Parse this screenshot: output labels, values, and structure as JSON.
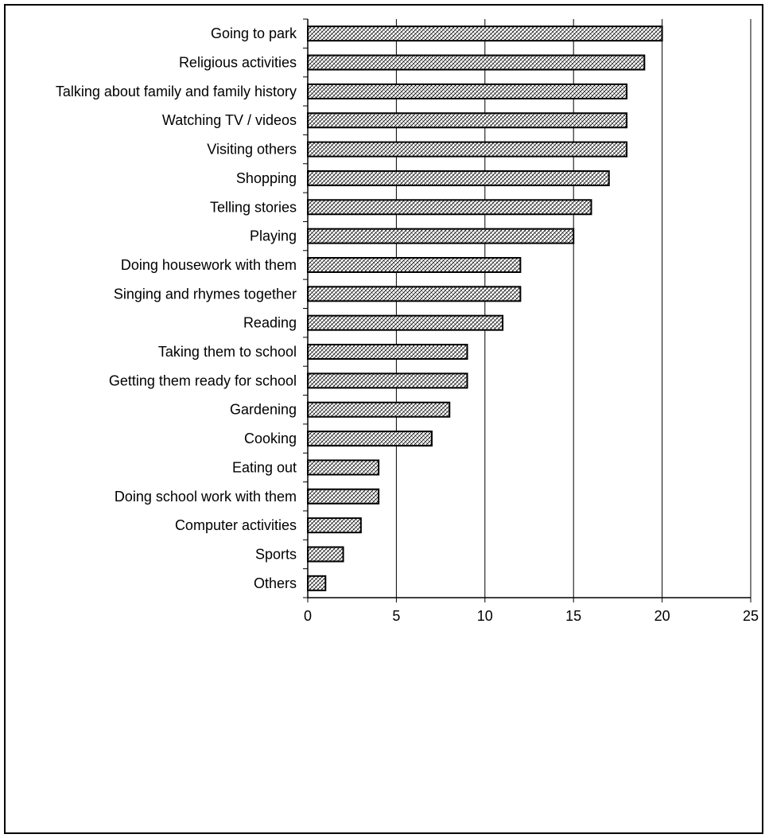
{
  "chart_data": {
    "type": "bar",
    "orientation": "horizontal",
    "title": "",
    "xlabel": "",
    "ylabel": "",
    "categories": [
      "Going to park",
      "Religious activities",
      "Talking about family and family history",
      "Watching TV / videos",
      "Visiting others",
      "Shopping",
      "Telling stories",
      "Playing",
      "Doing housework with them",
      "Singing and rhymes together",
      "Reading",
      "Taking them to school",
      "Getting them ready for school",
      "Gardening",
      "Cooking",
      "Eating out",
      "Doing school work with them",
      "Computer activities",
      "Sports",
      "Others"
    ],
    "values": [
      20,
      19,
      18,
      18,
      18,
      17,
      16,
      15,
      12,
      12,
      11,
      9,
      9,
      8,
      7,
      4,
      4,
      3,
      2,
      1
    ],
    "xlim": [
      0,
      25
    ],
    "x_ticks": [
      "0",
      "5",
      "10",
      "15",
      "20",
      "25"
    ],
    "grid": "vertical",
    "legend": "none",
    "bar_fill": "hatched",
    "colors": {
      "bar_stroke": "#000000",
      "hatch": "#000000",
      "background": "#ffffff",
      "grid": "#000000"
    }
  }
}
